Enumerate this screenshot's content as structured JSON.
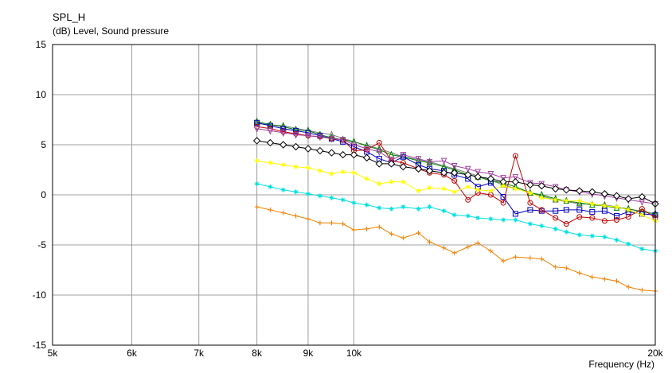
{
  "chart_data": {
    "type": "line",
    "title": "SPL_H",
    "ylabel": "(dB)  Level, Sound pressure",
    "xlabel": "Frequency  (Hz)",
    "x_scale": "log",
    "xlim": [
      5000,
      20000
    ],
    "ylim": [
      -15,
      15
    ],
    "grid": true,
    "x_ticks": [
      {
        "value": 5000,
        "label": "5k"
      },
      {
        "value": 6000,
        "label": "6k"
      },
      {
        "value": 7000,
        "label": "7k"
      },
      {
        "value": 8000,
        "label": "8k"
      },
      {
        "value": 9000,
        "label": "9k"
      },
      {
        "value": 10000,
        "label": "10k"
      },
      {
        "value": 20000,
        "label": "20k"
      }
    ],
    "y_ticks": [
      {
        "value": 15,
        "label": "15"
      },
      {
        "value": 10,
        "label": "10"
      },
      {
        "value": 5,
        "label": "5"
      },
      {
        "value": 0,
        "label": "0"
      },
      {
        "value": -5,
        "label": "-5"
      },
      {
        "value": -10,
        "label": "-10"
      },
      {
        "value": -15,
        "label": "-15"
      }
    ],
    "series": [
      {
        "color": "#808080",
        "marker": "tri-up",
        "x": [
          8000,
          8500,
          9000,
          9500,
          10000,
          10600,
          11200,
          11900,
          12600,
          13300,
          14100,
          15000,
          15900,
          16800,
          17800,
          18800,
          20000
        ],
        "y": [
          7.1,
          6.9,
          6.4,
          6.0,
          5.3,
          4.6,
          3.8,
          3.3,
          2.6,
          1.9,
          1.0,
          0.2,
          -0.5,
          -0.9,
          -1.0,
          -1.4,
          -1.9
        ]
      },
      {
        "color": "#008000",
        "marker": "tri-up",
        "x": [
          8000,
          8250,
          8500,
          8750,
          9000,
          9250,
          9500,
          9750,
          10000,
          10300,
          10600,
          10900,
          11200,
          11600,
          11900,
          12300,
          12600,
          13000,
          13300,
          13700,
          14100,
          14500,
          15000,
          15400,
          15900,
          16300,
          16800,
          17300,
          17800,
          18300,
          18800,
          19400,
          20000
        ],
        "y": [
          7.3,
          7.0,
          6.8,
          6.5,
          6.4,
          6.0,
          5.7,
          5.5,
          5.3,
          4.9,
          4.5,
          4.0,
          3.8,
          3.4,
          3.2,
          2.8,
          2.5,
          2.0,
          1.8,
          1.4,
          1.2,
          0.8,
          0.2,
          0.0,
          -0.4,
          -0.6,
          -0.8,
          -1.0,
          -1.1,
          -1.3,
          -1.4,
          -1.7,
          -1.9
        ]
      },
      {
        "color": "#0000c0",
        "marker": "square",
        "x": [
          8000,
          8250,
          8500,
          8750,
          9000,
          9250,
          9500,
          9750,
          10000,
          10300,
          10600,
          10900,
          11200,
          11600,
          11900,
          12300,
          12600,
          13000,
          13300,
          13700,
          14100,
          14500,
          15000,
          15400,
          15900,
          16300,
          16800,
          17300,
          17800,
          18300,
          18800,
          19400,
          20000
        ],
        "y": [
          7.2,
          6.9,
          6.6,
          6.4,
          6.2,
          5.9,
          5.6,
          5.3,
          4.8,
          4.3,
          3.6,
          3.2,
          3.8,
          3.0,
          2.6,
          2.4,
          2.0,
          1.6,
          0.8,
          1.2,
          -0.2,
          -1.9,
          -1.5,
          -1.6,
          -1.6,
          -1.5,
          -1.5,
          -1.7,
          -1.6,
          -2.1,
          -1.7,
          -1.9,
          -2.0
        ]
      },
      {
        "color": "#c00000",
        "marker": "circle",
        "x": [
          8000,
          8250,
          8500,
          8750,
          9000,
          9250,
          9500,
          9750,
          10000,
          10300,
          10600,
          10900,
          11200,
          11600,
          11900,
          12300,
          12600,
          13000,
          13300,
          13700,
          14100,
          14500,
          15000,
          15400,
          15900,
          16300,
          16800,
          17300,
          17800,
          18300,
          18800,
          19400,
          20000
        ],
        "y": [
          6.8,
          6.6,
          6.3,
          6.1,
          5.9,
          5.8,
          5.6,
          5.5,
          4.4,
          4.5,
          5.2,
          3.4,
          3.2,
          2.6,
          2.2,
          2.0,
          1.4,
          -0.5,
          0.2,
          0.0,
          -0.8,
          3.9,
          -0.8,
          -1.5,
          -2.3,
          -2.9,
          -2.2,
          -2.3,
          -2.6,
          -2.5,
          -2.2,
          -1.4,
          -2.3
        ]
      },
      {
        "color": "#a040a0",
        "marker": "tri-down",
        "x": [
          8000,
          8250,
          8500,
          8750,
          9000,
          9250,
          9500,
          9750,
          10000,
          10300,
          10600,
          10900,
          11200,
          11600,
          11900,
          12300,
          12600,
          13000,
          13300,
          13700,
          14100,
          14500,
          15000,
          15400,
          15900,
          16300,
          16800,
          17300,
          17800,
          18300,
          18800,
          19400,
          20000
        ],
        "y": [
          6.6,
          6.4,
          6.2,
          6.0,
          5.9,
          5.8,
          5.6,
          5.5,
          5.0,
          4.6,
          4.3,
          3.5,
          4.0,
          3.6,
          3.3,
          3.4,
          2.9,
          2.6,
          2.3,
          2.1,
          1.7,
          1.8,
          1.2,
          1.1,
          0.8,
          0.5,
          0.3,
          0.1,
          -0.1,
          -0.3,
          -0.5,
          -0.7,
          -0.9
        ]
      },
      {
        "color": "#000000",
        "marker": "diamond",
        "x": [
          8000,
          8250,
          8500,
          8750,
          9000,
          9250,
          9500,
          9750,
          10000,
          10300,
          10600,
          10900,
          11200,
          11600,
          11900,
          12300,
          12600,
          13000,
          13300,
          13700,
          14100,
          14500,
          15000,
          15400,
          15900,
          16300,
          16800,
          17300,
          17800,
          18300,
          18800,
          19400,
          20000
        ],
        "y": [
          5.4,
          5.2,
          5.0,
          4.8,
          4.6,
          4.4,
          4.2,
          4.0,
          4.0,
          3.7,
          3.1,
          3.1,
          2.8,
          2.6,
          2.4,
          2.2,
          2.2,
          2.0,
          1.8,
          1.6,
          1.3,
          1.3,
          1.0,
          0.9,
          0.6,
          0.5,
          0.4,
          0.3,
          0.1,
          -0.1,
          -0.4,
          -0.2,
          -0.9
        ]
      },
      {
        "color": "#ffff00",
        "marker": "asterisk",
        "x": [
          8000,
          8250,
          8500,
          8750,
          9000,
          9250,
          9500,
          9750,
          10000,
          10300,
          10600,
          10900,
          11200,
          11600,
          11900,
          12300,
          12600,
          13000,
          13300,
          13700,
          14100,
          14500,
          15000,
          15400,
          15900,
          16300,
          16800,
          17300,
          17800,
          18300,
          18800,
          19400,
          20000
        ],
        "y": [
          3.4,
          3.2,
          3.0,
          2.8,
          2.7,
          2.4,
          2.1,
          2.3,
          2.2,
          1.6,
          1.1,
          1.3,
          1.3,
          0.4,
          0.7,
          0.6,
          0.3,
          0.8,
          0.5,
          0.4,
          0.9,
          0.6,
          0.2,
          -0.3,
          -0.5,
          -0.6,
          -0.6,
          -0.9,
          -1.1,
          -1.2,
          -1.5,
          -2.0,
          -2.6
        ]
      },
      {
        "color": "#00e0e0",
        "marker": "asterisk",
        "x": [
          8000,
          8250,
          8500,
          8750,
          9000,
          9250,
          9500,
          9750,
          10000,
          10300,
          10600,
          10900,
          11200,
          11600,
          11900,
          12300,
          12600,
          13000,
          13300,
          13700,
          14100,
          14500,
          15000,
          15400,
          15900,
          16300,
          16800,
          17300,
          17800,
          18300,
          18800,
          19400,
          20000
        ],
        "y": [
          1.1,
          0.8,
          0.5,
          0.3,
          0.1,
          -0.1,
          -0.3,
          -0.5,
          -0.8,
          -1.0,
          -1.3,
          -1.4,
          -1.2,
          -1.4,
          -1.2,
          -1.6,
          -2.0,
          -2.1,
          -2.3,
          -2.4,
          -2.5,
          -2.5,
          -2.9,
          -3.1,
          -3.4,
          -3.7,
          -4.0,
          -4.1,
          -4.2,
          -4.5,
          -4.9,
          -5.4,
          -5.6
        ]
      },
      {
        "color": "#f08000",
        "marker": "cross",
        "x": [
          8000,
          8250,
          8500,
          8750,
          9000,
          9250,
          9500,
          9750,
          10000,
          10300,
          10600,
          10900,
          11200,
          11600,
          11900,
          12300,
          12600,
          13000,
          13300,
          13700,
          14100,
          14500,
          15000,
          15400,
          15900,
          16300,
          16800,
          17300,
          17800,
          18300,
          18800,
          19400,
          20000
        ],
        "y": [
          -1.2,
          -1.5,
          -1.8,
          -2.1,
          -2.4,
          -2.8,
          -2.8,
          -2.9,
          -3.5,
          -3.4,
          -3.2,
          -3.9,
          -4.3,
          -3.8,
          -4.7,
          -5.3,
          -5.8,
          -5.2,
          -4.8,
          -5.6,
          -6.6,
          -6.2,
          -6.3,
          -6.4,
          -7.2,
          -7.3,
          -7.8,
          -8.2,
          -8.4,
          -8.6,
          -9.2,
          -9.5,
          -9.6
        ]
      }
    ]
  }
}
